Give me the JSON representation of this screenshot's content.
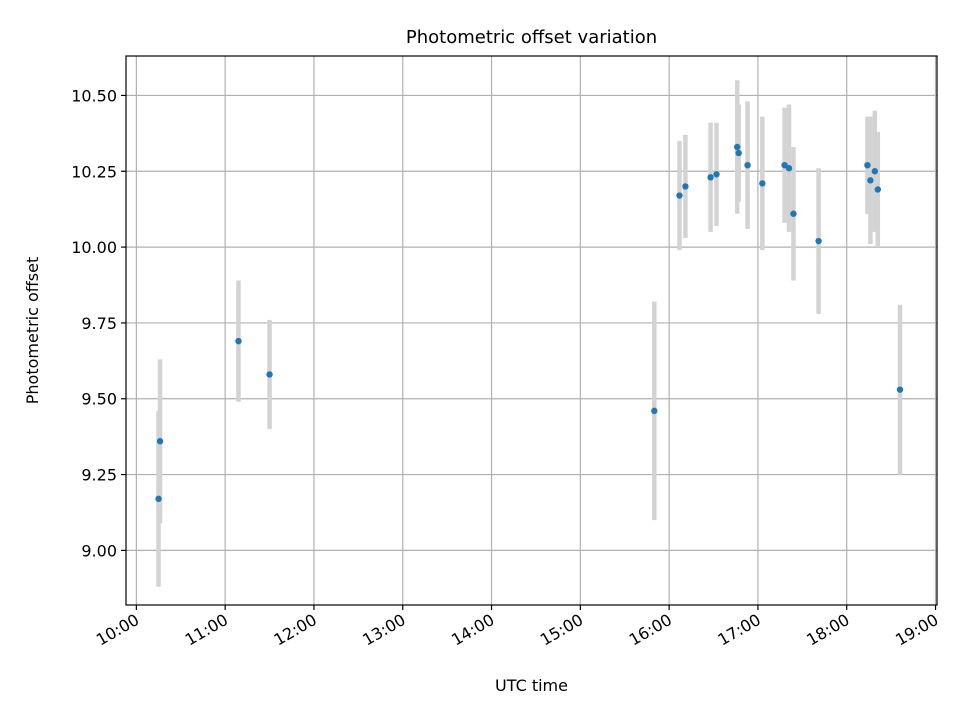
{
  "chart_data": {
    "type": "scatter",
    "title": "Photometric offset variation",
    "xlabel": "UTC time",
    "ylabel": "Photometric offset",
    "x_tick_labels": [
      "10:00",
      "11:00",
      "12:00",
      "13:00",
      "14:00",
      "15:00",
      "16:00",
      "17:00",
      "18:00",
      "19:00"
    ],
    "y_tick_labels": [
      "9.00",
      "9.25",
      "9.50",
      "9.75",
      "10.00",
      "10.25",
      "10.50"
    ],
    "xlim": [
      "09:53",
      "19:01"
    ],
    "ylim": [
      8.82,
      10.63
    ],
    "grid": true,
    "point_color": "#1f77b4",
    "errorbar_color": "#d3d3d3",
    "points": [
      {
        "x": "10:15",
        "y": 9.17,
        "yerr": 0.29
      },
      {
        "x": "10:16",
        "y": 9.36,
        "yerr": 0.27
      },
      {
        "x": "11:09",
        "y": 9.69,
        "yerr": 0.2
      },
      {
        "x": "11:30",
        "y": 9.58,
        "yerr": 0.18
      },
      {
        "x": "15:50",
        "y": 9.46,
        "yerr": 0.36
      },
      {
        "x": "16:07",
        "y": 10.17,
        "yerr": 0.18
      },
      {
        "x": "16:11",
        "y": 10.2,
        "yerr": 0.17
      },
      {
        "x": "16:28",
        "y": 10.23,
        "yerr": 0.18
      },
      {
        "x": "16:32",
        "y": 10.24,
        "yerr": 0.17
      },
      {
        "x": "16:46",
        "y": 10.33,
        "yerr": 0.22
      },
      {
        "x": "16:47",
        "y": 10.31,
        "yerr": 0.16
      },
      {
        "x": "16:53",
        "y": 10.27,
        "yerr": 0.21
      },
      {
        "x": "17:03",
        "y": 10.21,
        "yerr": 0.22
      },
      {
        "x": "17:18",
        "y": 10.27,
        "yerr": 0.19
      },
      {
        "x": "17:21",
        "y": 10.26,
        "yerr": 0.21
      },
      {
        "x": "17:24",
        "y": 10.11,
        "yerr": 0.22
      },
      {
        "x": "17:41",
        "y": 10.02,
        "yerr": 0.24
      },
      {
        "x": "18:14",
        "y": 10.27,
        "yerr": 0.16
      },
      {
        "x": "18:16",
        "y": 10.22,
        "yerr": 0.21
      },
      {
        "x": "18:19",
        "y": 10.25,
        "yerr": 0.2
      },
      {
        "x": "18:21",
        "y": 10.19,
        "yerr": 0.19
      },
      {
        "x": "18:36",
        "y": 9.53,
        "yerr": 0.28
      }
    ]
  }
}
